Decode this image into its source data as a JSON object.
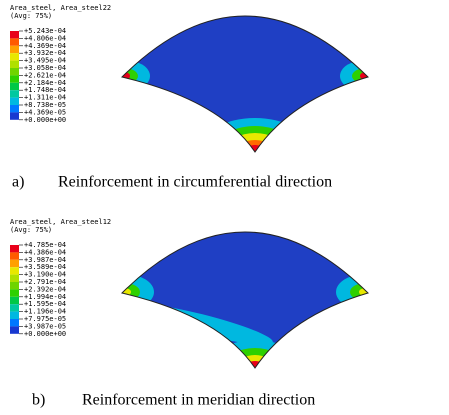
{
  "figures": [
    {
      "legend_title": [
        "Area_steel, Area_steel22",
        "(Avg: 75%)"
      ],
      "legend_labels": [
        "+5.243e-04",
        "+4.806e-04",
        "+4.369e-04",
        "+3.932e-04",
        "+3.495e-04",
        "+3.058e-04",
        "+2.621e-04",
        "+2.184e-04",
        "+1.748e-04",
        "+1.311e-04",
        "+8.738e-05",
        "+4.369e-05",
        "+0.000e+00"
      ],
      "caption_label": "a)",
      "caption": "Reinforcement in circumferential direction"
    },
    {
      "legend_title": [
        "Area_steel, Area_steel12",
        "(Avg: 75%)"
      ],
      "legend_labels": [
        "+4.785e-04",
        "+4.386e-04",
        "+3.987e-04",
        "+3.589e-04",
        "+3.190e-04",
        "+2.791e-04",
        "+2.392e-04",
        "+1.994e-04",
        "+1.595e-04",
        "+1.196e-04",
        "+7.975e-05",
        "+3.987e-05",
        "+0.000e+00"
      ],
      "caption_label": "b)",
      "caption": "Reinforcement in meridian direction"
    }
  ]
}
